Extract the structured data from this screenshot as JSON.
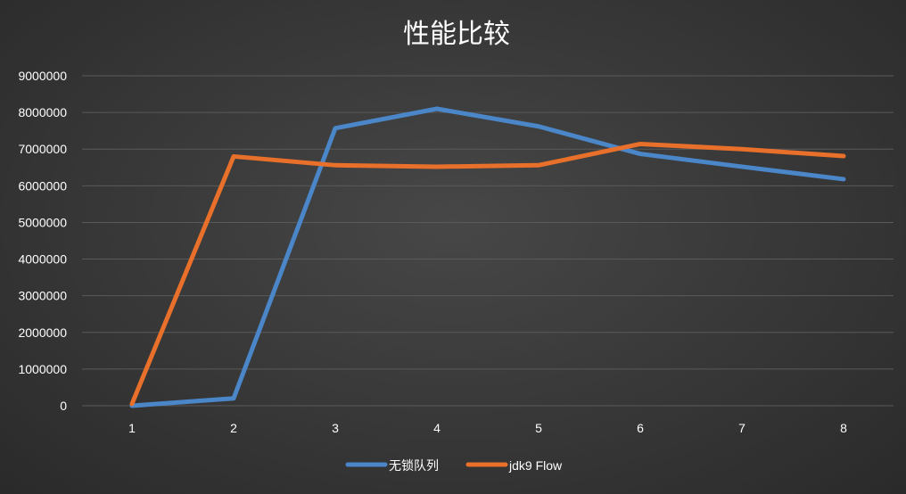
{
  "chart_data": {
    "type": "line",
    "title": "性能比较",
    "xlabel": "",
    "ylabel": "",
    "categories": [
      "1",
      "2",
      "3",
      "4",
      "5",
      "6",
      "7",
      "8"
    ],
    "ylim": [
      0,
      9000000
    ],
    "yticks": [
      0,
      1000000,
      2000000,
      3000000,
      4000000,
      5000000,
      6000000,
      7000000,
      8000000,
      9000000
    ],
    "grid": true,
    "legend_position": "bottom",
    "series": [
      {
        "name": "无锁队列",
        "color": "#4a86c8",
        "values": [
          0,
          200000,
          7570000,
          8100000,
          7620000,
          6870000,
          6520000,
          6180000
        ]
      },
      {
        "name": "jdk9 Flow",
        "color": "#e8702a",
        "values": [
          50000,
          6800000,
          6560000,
          6520000,
          6560000,
          7140000,
          7000000,
          6810000
        ]
      }
    ]
  }
}
